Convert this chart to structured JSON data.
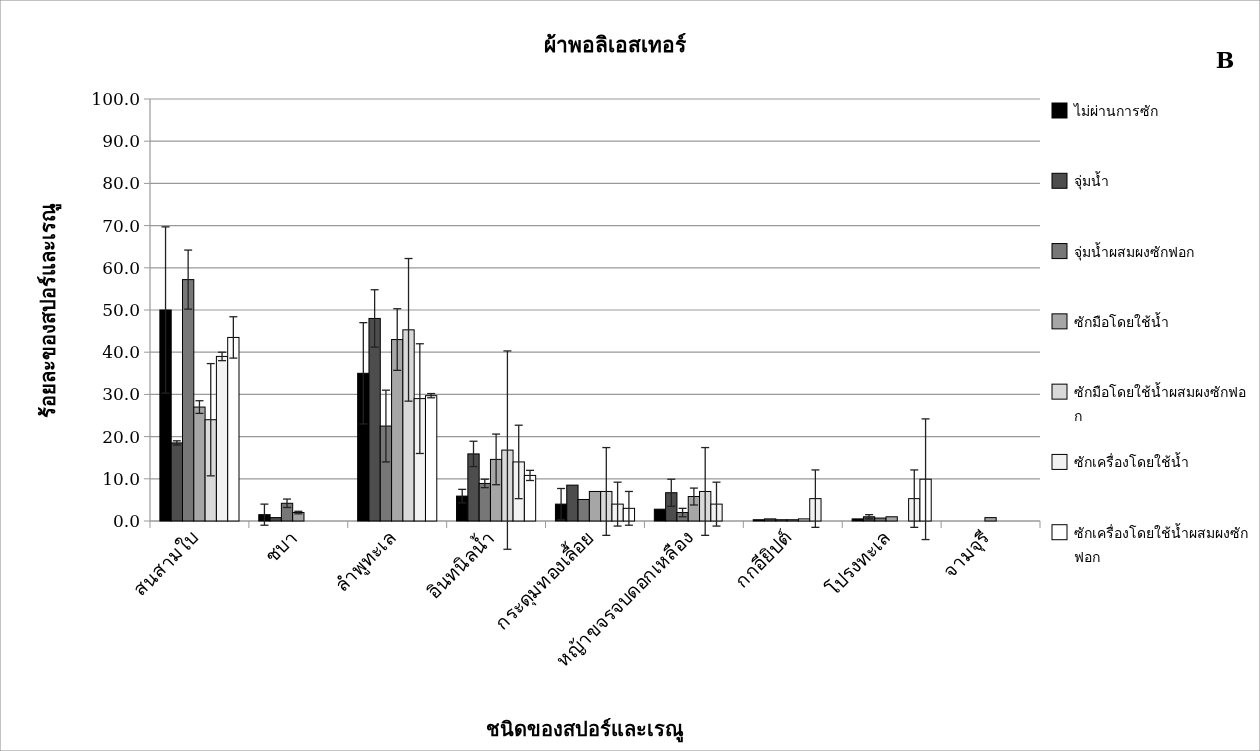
{
  "chart_data": {
    "type": "bar",
    "title": "ผ้าพอลิเอสเทอร์",
    "xlabel": "ชนิดของสปอร์และเรณู",
    "ylabel": "ร้อยละของสปอร์และเรณู",
    "annotations": [
      "B"
    ],
    "categories": [
      "สนสามใบ",
      "ชบา",
      "ลำพูทะเล",
      "อินทนิลน้ำ",
      "กระดุมทองเลื้อย",
      "หญ้าขจรจบดอกเหลือง",
      "กกอียิปต์",
      "โปรงทะเล",
      "จามจุรี"
    ],
    "ylim": [
      0,
      100
    ],
    "yticks": [
      {
        "value": 0,
        "label": "0.0"
      },
      {
        "value": 10,
        "label": "10.0"
      },
      {
        "value": 20,
        "label": "20.0"
      },
      {
        "value": 30,
        "label": "30.0"
      },
      {
        "value": 40,
        "label": "40.0"
      },
      {
        "value": 50,
        "label": "50.0"
      },
      {
        "value": 60,
        "label": "60.0"
      },
      {
        "value": 70,
        "label": "70.0"
      },
      {
        "value": 80,
        "label": "80.0"
      },
      {
        "value": 90,
        "label": "90.0"
      },
      {
        "value": 100,
        "label": "100.0"
      }
    ],
    "grid": "y",
    "legend": "right",
    "series": [
      {
        "name": "ไม่ผ่านการซัก",
        "color": "#000000",
        "values": [
          50,
          1.5,
          35,
          5.9,
          4,
          2.8,
          0.3,
          0.5,
          0
        ],
        "errors": [
          19.7,
          2.5,
          12,
          1.6,
          3.7,
          null,
          null,
          null,
          null
        ]
      },
      {
        "name": "จุ่มน้ำ",
        "color": "#4d4d4d",
        "values": [
          18.5,
          0.8,
          48,
          15.9,
          8.5,
          6.7,
          0.5,
          1,
          0
        ],
        "errors": [
          0.5,
          null,
          6.8,
          3,
          null,
          3.2,
          null,
          0.5,
          null
        ]
      },
      {
        "name": "จุ่มน้ำผสมผงซักฟอก",
        "color": "#777777",
        "values": [
          57.2,
          4.2,
          22.5,
          8.9,
          5.1,
          2,
          0.3,
          0.7,
          0
        ],
        "errors": [
          7,
          1,
          8.5,
          1,
          null,
          1,
          null,
          null,
          null
        ]
      },
      {
        "name": "ซักมือโดยใช้น้ำ",
        "color": "#a6a6a6",
        "values": [
          27,
          2,
          43,
          14.6,
          7,
          5.8,
          0.3,
          1,
          0.8
        ],
        "errors": [
          1.5,
          0.3,
          7.3,
          6,
          null,
          2,
          null,
          null,
          null
        ]
      },
      {
        "name": "ซักมือโดยใช้น้ำผสมผงซักฟอก",
        "color": "#d9d9d9",
        "values": [
          24,
          0,
          45.3,
          16.8,
          7,
          7,
          0.5,
          0,
          0
        ],
        "errors": [
          13.3,
          null,
          16.9,
          23.5,
          10.4,
          10.4,
          null,
          null,
          null
        ]
      },
      {
        "name": "ซักเครื่องโดยใช้น้ำ",
        "color": "#f2f2f2",
        "values": [
          39,
          0,
          29,
          14,
          4,
          4,
          5.3,
          5.3,
          0
        ],
        "errors": [
          1,
          null,
          13,
          8.7,
          5.2,
          5.2,
          6.8,
          6.8,
          null
        ]
      },
      {
        "name": "ซักเครื่องโดยใช้น้ำผสมผงซักฟอก",
        "color": "#ffffff",
        "values": [
          43.5,
          0,
          29.7,
          10.8,
          3,
          0,
          0,
          9.9,
          0
        ],
        "errors": [
          4.9,
          null,
          0.5,
          1.2,
          4,
          null,
          null,
          14.3,
          null
        ]
      }
    ]
  }
}
